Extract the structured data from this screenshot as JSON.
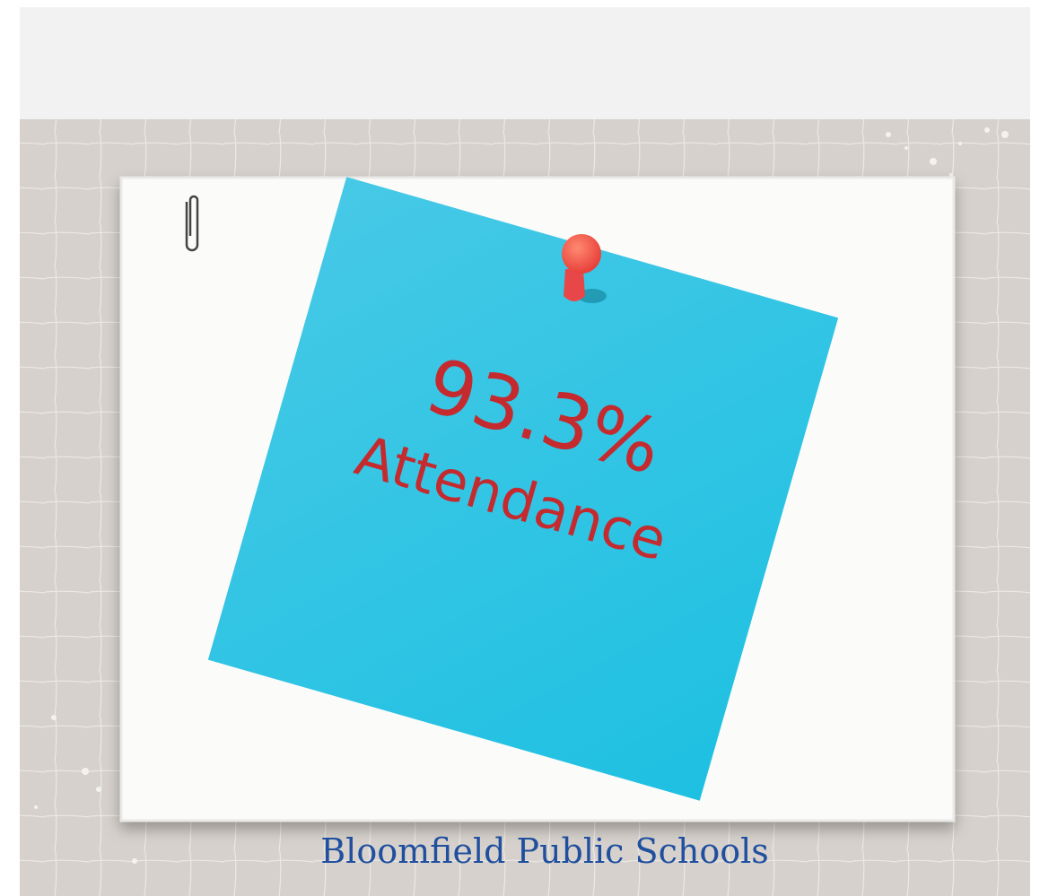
{
  "note": {
    "value_text": "93.3%",
    "label": "Attendance"
  },
  "footer": {
    "text": "Bloomfield Public Schools"
  }
}
